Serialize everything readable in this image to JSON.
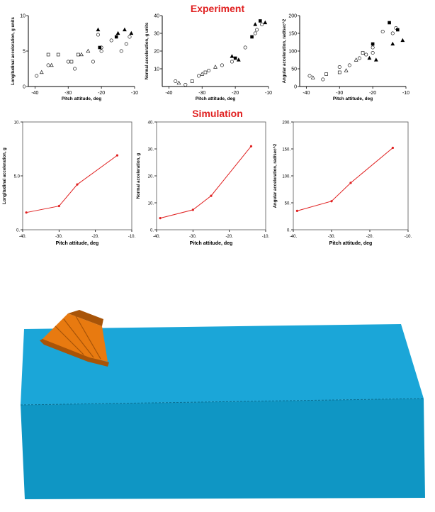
{
  "headings": {
    "experiment": "Experiment",
    "simulation": "Simulation",
    "color": "#e02020"
  },
  "chart_data": [
    {
      "id": "exp-longitudinal",
      "type": "scatter",
      "group": "experiment",
      "title": "",
      "xlabel": "Pitch attitude, deg",
      "ylabel": "Longitudinal acceleration, g units",
      "xlim": [
        -42,
        -10
      ],
      "ylim": [
        0,
        10
      ],
      "xticks": [
        -40,
        -30,
        -20,
        -10
      ],
      "xtick_labels": [
        "-40",
        "-30",
        "-20",
        "-10"
      ],
      "yticks": [
        0,
        5,
        10
      ],
      "ytick_labels": [
        "0",
        "5",
        "10"
      ],
      "grid": false,
      "legend": "none",
      "series": [
        {
          "marker": "circle",
          "filled": false,
          "x": [
            -39.5,
            -36,
            -30,
            -28,
            -22.5,
            -21,
            -20,
            -20,
            -17,
            -14,
            -12.5,
            -11.5
          ],
          "y": [
            1.5,
            3.0,
            3.5,
            2.5,
            3.5,
            7.3,
            5.0,
            5.5,
            6.5,
            5.0,
            6.0,
            7.0
          ]
        },
        {
          "marker": "triangle",
          "filled": false,
          "x": [
            -38,
            -35,
            -26,
            -24
          ],
          "y": [
            2.0,
            3.0,
            4.5,
            5.0
          ]
        },
        {
          "marker": "square",
          "filled": false,
          "x": [
            -36,
            -33,
            -29,
            -27
          ],
          "y": [
            4.5,
            4.5,
            3.5,
            4.5
          ]
        },
        {
          "marker": "triangle",
          "filled": true,
          "x": [
            -21,
            -15,
            -13,
            -11
          ],
          "y": [
            8.0,
            7.5,
            8.0,
            7.5
          ]
        },
        {
          "marker": "square",
          "filled": true,
          "x": [
            -20.5,
            -15.5
          ],
          "y": [
            5.5,
            7.0
          ]
        }
      ]
    },
    {
      "id": "exp-normal",
      "type": "scatter",
      "group": "experiment",
      "title": "",
      "xlabel": "Pitch attitude, deg",
      "ylabel": "Normal acceleration, g units",
      "xlim": [
        -42,
        -10
      ],
      "ylim": [
        0,
        40
      ],
      "xticks": [
        -40,
        -30,
        -20,
        -10
      ],
      "xtick_labels": [
        "-40",
        "-30",
        "-20",
        "-10"
      ],
      "yticks": [
        10,
        20,
        30,
        40
      ],
      "ytick_labels": [
        "10",
        "20",
        "30",
        "40"
      ],
      "grid": false,
      "legend": "none",
      "series": [
        {
          "marker": "circle",
          "filled": false,
          "x": [
            -38,
            -35,
            -31,
            -28,
            -24,
            -21,
            -17,
            -14,
            -13.5,
            -12
          ],
          "y": [
            3,
            1,
            6,
            9,
            12,
            14,
            22,
            30,
            32,
            35
          ]
        },
        {
          "marker": "triangle",
          "filled": false,
          "x": [
            -37,
            -30,
            -26
          ],
          "y": [
            2,
            7,
            11
          ]
        },
        {
          "marker": "square",
          "filled": false,
          "x": [
            -33,
            -29
          ],
          "y": [
            3,
            8
          ]
        },
        {
          "marker": "triangle",
          "filled": true,
          "x": [
            -21,
            -19,
            -14,
            -11
          ],
          "y": [
            17,
            15,
            35,
            36
          ]
        },
        {
          "marker": "square",
          "filled": true,
          "x": [
            -20,
            -15,
            -12.5
          ],
          "y": [
            16,
            28,
            37
          ]
        }
      ]
    },
    {
      "id": "exp-angular",
      "type": "scatter",
      "group": "experiment",
      "title": "",
      "xlabel": "Pitch attitude, deg",
      "ylabel": "Angular acceleration, rad/sec^2",
      "xlim": [
        -42,
        -10
      ],
      "ylim": [
        0,
        200
      ],
      "xticks": [
        -40,
        -30,
        -20,
        -10
      ],
      "xtick_labels": [
        "-40",
        "-30",
        "-20",
        "-10"
      ],
      "yticks": [
        0,
        50,
        100,
        150,
        200
      ],
      "ytick_labels": [
        "0",
        "50",
        "100",
        "150",
        "200"
      ],
      "grid": false,
      "legend": "none",
      "series": [
        {
          "marker": "circle",
          "filled": false,
          "x": [
            -39,
            -35,
            -30,
            -27,
            -24,
            -22,
            -20,
            -20,
            -17,
            -14,
            -13
          ],
          "y": [
            30,
            20,
            55,
            60,
            80,
            90,
            95,
            110,
            155,
            150,
            165
          ]
        },
        {
          "marker": "triangle",
          "filled": false,
          "x": [
            -38,
            -28,
            -25
          ],
          "y": [
            25,
            45,
            75
          ]
        },
        {
          "marker": "square",
          "filled": false,
          "x": [
            -34,
            -30,
            -23
          ],
          "y": [
            35,
            40,
            95
          ]
        },
        {
          "marker": "triangle",
          "filled": true,
          "x": [
            -21,
            -19,
            -14,
            -11
          ],
          "y": [
            80,
            75,
            120,
            130
          ]
        },
        {
          "marker": "square",
          "filled": true,
          "x": [
            -20,
            -15,
            -12.5
          ],
          "y": [
            120,
            180,
            160
          ]
        }
      ]
    },
    {
      "id": "sim-longitudinal",
      "type": "line",
      "group": "simulation",
      "title": "",
      "xlabel": "Pitch attitude, deg",
      "ylabel": "Longitudinal acceleration, g",
      "xlim": [
        -40,
        -10
      ],
      "ylim": [
        0,
        10
      ],
      "xticks": [
        -40,
        -30,
        -20,
        -10
      ],
      "xtick_labels": [
        "-40.",
        "-30.",
        "-20.",
        "-10."
      ],
      "yticks": [
        0,
        5,
        10
      ],
      "ytick_labels": [
        "0.",
        "5.0",
        "10."
      ],
      "grid": false,
      "legend": "none",
      "color": "#e02020",
      "series": [
        {
          "x": [
            -39,
            -30,
            -25,
            -14
          ],
          "y": [
            1.6,
            2.2,
            4.2,
            6.9
          ]
        }
      ]
    },
    {
      "id": "sim-normal",
      "type": "line",
      "group": "simulation",
      "title": "",
      "xlabel": "Pitch attitude, deg",
      "ylabel": "Normal acceleration, g",
      "xlim": [
        -40,
        -10
      ],
      "ylim": [
        0,
        40
      ],
      "xticks": [
        -40,
        -30,
        -20,
        -10
      ],
      "xtick_labels": [
        "-40.",
        "-30.",
        "-20.",
        "-10."
      ],
      "yticks": [
        0,
        10,
        20,
        30,
        40
      ],
      "ytick_labels": [
        "0.",
        "10.",
        "20.",
        "30.",
        "40."
      ],
      "grid": false,
      "legend": "none",
      "color": "#e02020",
      "series": [
        {
          "x": [
            -39,
            -30,
            -25,
            -14
          ],
          "y": [
            4.3,
            7.4,
            12.6,
            31
          ]
        }
      ]
    },
    {
      "id": "sim-angular",
      "type": "line",
      "group": "simulation",
      "title": "",
      "xlabel": "Pitch attitude, deg",
      "ylabel": "Angular acceleration, rad/sec^2",
      "xlim": [
        -40,
        -10
      ],
      "ylim": [
        0,
        200
      ],
      "xticks": [
        -40,
        -30,
        -20,
        -10
      ],
      "xtick_labels": [
        "-40.",
        "-30.",
        "-20.",
        "-10."
      ],
      "yticks": [
        0,
        50,
        100,
        150,
        200
      ],
      "ytick_labels": [
        "0.",
        "50.",
        "100.",
        "150.",
        "200."
      ],
      "grid": false,
      "legend": "none",
      "color": "#e02020",
      "series": [
        {
          "x": [
            -39,
            -30,
            -25,
            -14
          ],
          "y": [
            35,
            53,
            87,
            152
          ]
        }
      ]
    }
  ],
  "scene": {
    "block_color": "#1ba6d8",
    "block_front_color": "#0f96c4",
    "cone_color": "#e87a10",
    "cone_dark_color": "#a85408"
  }
}
